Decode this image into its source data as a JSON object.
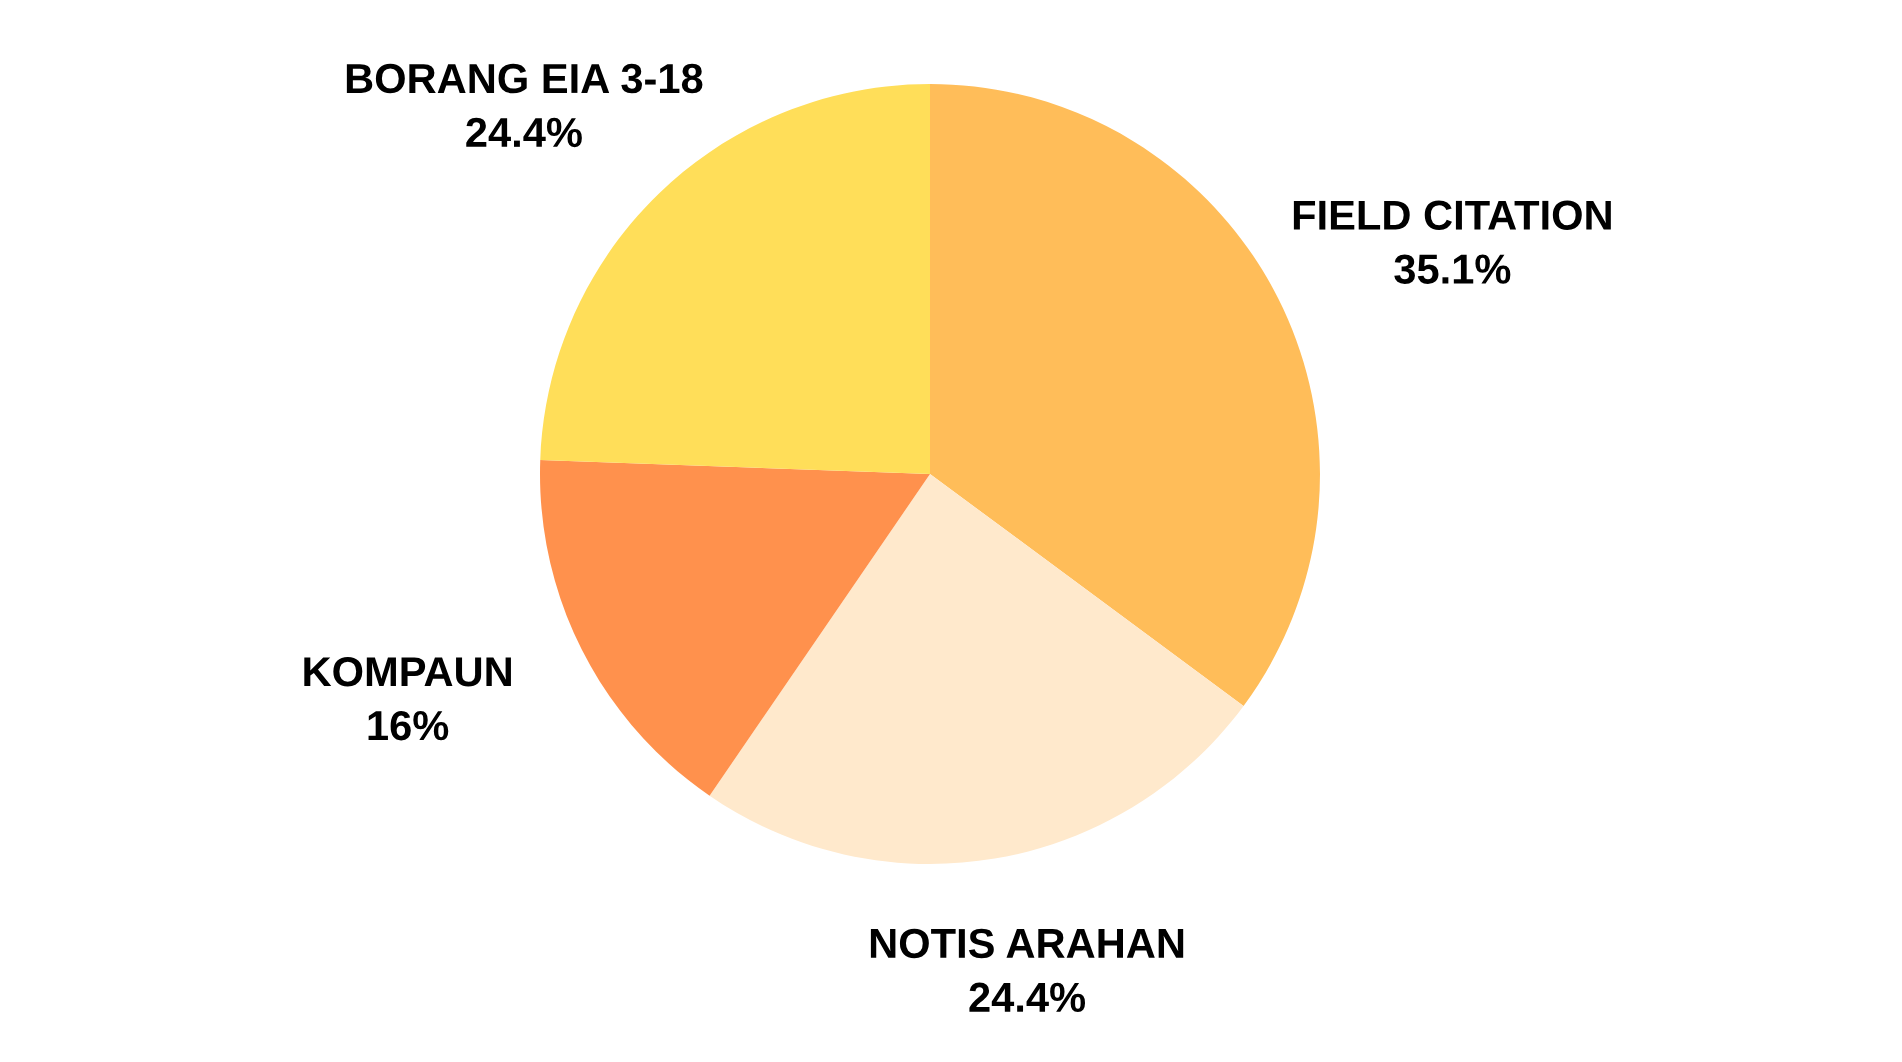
{
  "chart_data": {
    "type": "pie",
    "categories": [
      "FIELD CITATION",
      "NOTIS ARAHAN",
      "KOMPAUN",
      "BORANG EIA 3-18"
    ],
    "values": [
      35.1,
      24.4,
      16,
      24.4
    ],
    "value_labels": [
      "35.1%",
      "24.4%",
      "16%",
      "24.4%"
    ],
    "colors": [
      "#ffbd59",
      "#ffe9cc",
      "#ff914d",
      "#ffde59"
    ]
  }
}
